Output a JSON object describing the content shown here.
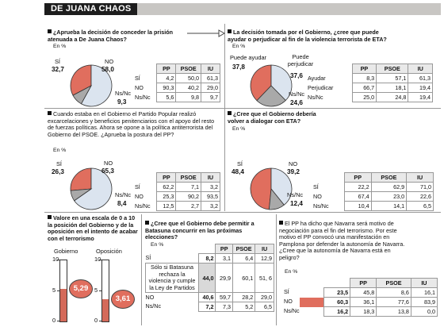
{
  "header": {
    "title": "DE JUANA CHAOS"
  },
  "colors": {
    "red": "#e06e5e",
    "blue": "#dbe4ef",
    "gray": "#a9a9a9",
    "stroke": "#333333"
  },
  "chart_data": [
    {
      "type": "pie",
      "id": "q1",
      "title": "¿Aprueba la decisión de conceder la prisión atenuada a De Juana Chaos?",
      "unit": "En %",
      "slices": [
        {
          "name": "SÍ",
          "value": 32.7
        },
        {
          "name": "NO",
          "value": 58.0
        },
        {
          "name": "Ns/Nc",
          "value": 9.3
        }
      ],
      "table": {
        "columns": [
          "PP",
          "PSOE",
          "IU"
        ],
        "rows": [
          {
            "label": "SÍ",
            "values": [
              "4,2",
              "50,0",
              "61,3"
            ]
          },
          {
            "label": "NO",
            "values": [
              "90,3",
              "40,2",
              "29,0"
            ]
          },
          {
            "label": "Ns/Nc",
            "values": [
              "5,6",
              "9,8",
              "9,7"
            ]
          }
        ]
      }
    },
    {
      "type": "pie",
      "id": "q2",
      "title": "La decisión tomada por el Gobierno, ¿cree que puede ayudar o perjudicar al fin de la violencia terrorista de ETA?",
      "unit": "En %",
      "slices": [
        {
          "name": "Puede ayudar",
          "value": 37.8
        },
        {
          "name": "Puede perjudicar",
          "value": 37.6
        },
        {
          "name": "Ns/Nc",
          "value": 24.6
        }
      ],
      "table": {
        "columns": [
          "PP",
          "PSOE",
          "IU"
        ],
        "rows": [
          {
            "label": "Ayudar",
            "values": [
              "8,3",
              "57,1",
              "61,3"
            ]
          },
          {
            "label": "Perjudicar",
            "values": [
              "66,7",
              "18,1",
              "19,4"
            ]
          },
          {
            "label": "Ns/Nc",
            "values": [
              "25,0",
              "24,8",
              "19,4"
            ]
          }
        ]
      }
    },
    {
      "type": "pie",
      "id": "q3",
      "title": "Cuando estaba en el Gobierno el Partido Popular realizó excarcelaciones y beneficios penitenciarios con el apoyo del resto de fuerzas políticas. Ahora se opone a la política antiterrorista del Gobierno del PSOE. ¿Aprueba la postura del PP?",
      "unit": "En %",
      "slices": [
        {
          "name": "SÍ",
          "value": 26.3
        },
        {
          "name": "NO",
          "value": 65.3
        },
        {
          "name": "Ns/Nc",
          "value": 8.4
        }
      ],
      "table": {
        "columns": [
          "PP",
          "PSOE",
          "IU"
        ],
        "rows": [
          {
            "label": "SÍ",
            "values": [
              "62,2",
              "7,1",
              "3,2"
            ]
          },
          {
            "label": "NO",
            "values": [
              "25,3",
              "90,2",
              "93,5"
            ]
          },
          {
            "label": "Ns/Nc",
            "values": [
              "12,5",
              "2,7",
              "3,2"
            ]
          }
        ]
      }
    },
    {
      "type": "pie",
      "id": "q4",
      "title": "¿Cree que el Gobierno debería volver a dialogar con ETA?",
      "unit": "En %",
      "slices": [
        {
          "name": "SÍ",
          "value": 48.4
        },
        {
          "name": "NO",
          "value": 39.2
        },
        {
          "name": "Ns/Nc",
          "value": 12.4
        }
      ],
      "table": {
        "columns": [
          "PP",
          "PSOE",
          "IU"
        ],
        "rows": [
          {
            "label": "SÍ",
            "values": [
              "22,2",
              "62,9",
              "71,0"
            ]
          },
          {
            "label": "NO",
            "values": [
              "67,4",
              "23,0",
              "22,6"
            ]
          },
          {
            "label": "Ns/Nc",
            "values": [
              "10,4",
              "14,1",
              "6,5"
            ]
          }
        ]
      }
    },
    {
      "type": "bar",
      "id": "q5",
      "title": "Valore en una escala de 0 a 10 la posición del Gobierno y de la oposición en el intento de acabar con el terrorismo",
      "categories": [
        "Gobierno",
        "Oposición"
      ],
      "values": [
        5.29,
        3.61
      ],
      "value_labels": [
        "5,29",
        "3,61"
      ],
      "ylim": [
        0,
        10
      ],
      "ticks": [
        "0",
        "5",
        "10"
      ]
    },
    {
      "type": "table",
      "id": "q6",
      "title": "¿Cree que el Gobierno debe permitir a Batasuna concurrir en las próximas elecciones?",
      "unit": "En %",
      "columns": [
        "PP",
        "PSOE",
        "IU"
      ],
      "rows": [
        {
          "label": "SÍ",
          "total": "8,2",
          "values": [
            "3,1",
            "6,4",
            "12,9"
          ]
        },
        {
          "label": "Sólo si Batasuna rechaza la violencia y cumple la Ley de Partidos",
          "total": "44,0",
          "values": [
            "29,9",
            "60,1",
            "51, 6"
          ]
        },
        {
          "label": "NO",
          "total": "40,6",
          "values": [
            "59,7",
            "28,2",
            "29,0"
          ]
        },
        {
          "label": "Ns/Nc",
          "total": "7,2",
          "values": [
            "7,3",
            "5,2",
            "6,5"
          ]
        }
      ]
    },
    {
      "type": "table",
      "id": "q7",
      "title": "El PP ha dicho que Navarra será motivo de negociación para el fin del terrorismo. Por este motivo el PP convocó una manifestación en Pamplona por defender la autonomía de Navarra. ¿Cree que la autonomía de Navarra está en peligro?",
      "unit": "En %",
      "columns": [
        "PP",
        "PSOE",
        "IU"
      ],
      "rows": [
        {
          "label": "SÍ",
          "total": "23,5",
          "values": [
            "45,8",
            "8,6",
            "16,1"
          ]
        },
        {
          "label": "NO",
          "total": "60,3",
          "values": [
            "36,1",
            "77,6",
            "83,9"
          ]
        },
        {
          "label": "Ns/Nc",
          "total": "16,2",
          "values": [
            "18,3",
            "13,8",
            "0,0"
          ]
        }
      ]
    }
  ]
}
